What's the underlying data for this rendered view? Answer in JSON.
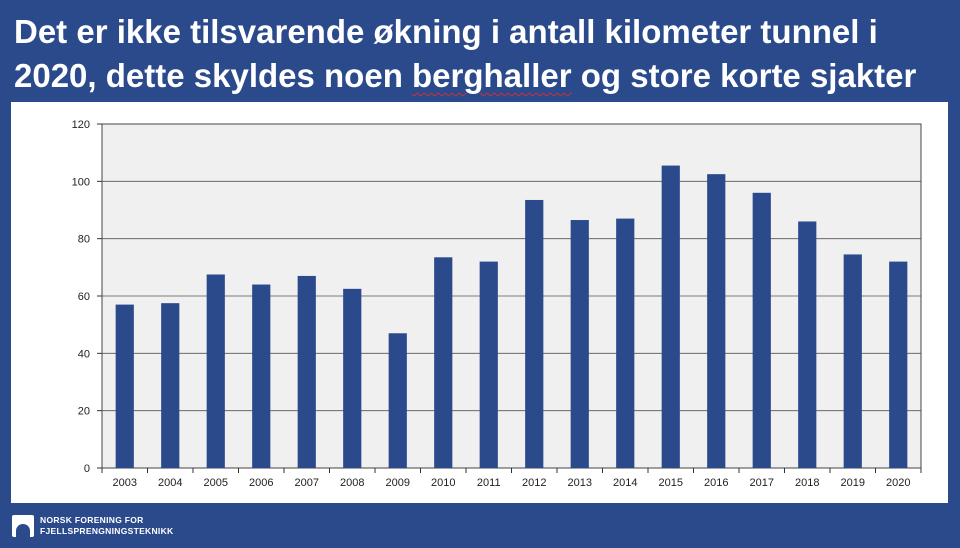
{
  "slide": {
    "title_before": "Det er ikke tilsvarende økning i antall kilometer tunnel i 2020, dette skyldes noen ",
    "title_marked": "berghaller",
    "title_after": " og store korte sjakter"
  },
  "footer": {
    "org_line1": "NORSK FORENING FOR",
    "org_line2": "FJELLSPRENGNINGSTEKNIKK"
  },
  "colors": {
    "background": "#2b4a8c",
    "bar": "#2b4a8c",
    "plot_area": "#f0f0f0"
  },
  "chart_data": {
    "type": "bar",
    "categories": [
      "2003",
      "2004",
      "2005",
      "2006",
      "2007",
      "2008",
      "2009",
      "2010",
      "2011",
      "2012",
      "2013",
      "2014",
      "2015",
      "2016",
      "2017",
      "2018",
      "2019",
      "2020"
    ],
    "values": [
      57,
      57.5,
      67.5,
      64,
      67,
      62.5,
      47,
      73.5,
      72,
      93.5,
      86.5,
      87,
      105.5,
      102.5,
      96,
      86,
      74.5,
      72
    ],
    "yticks": [
      0,
      20,
      40,
      60,
      80,
      100,
      120
    ],
    "ylim": [
      0,
      120
    ],
    "grid": true,
    "legend": "none"
  }
}
